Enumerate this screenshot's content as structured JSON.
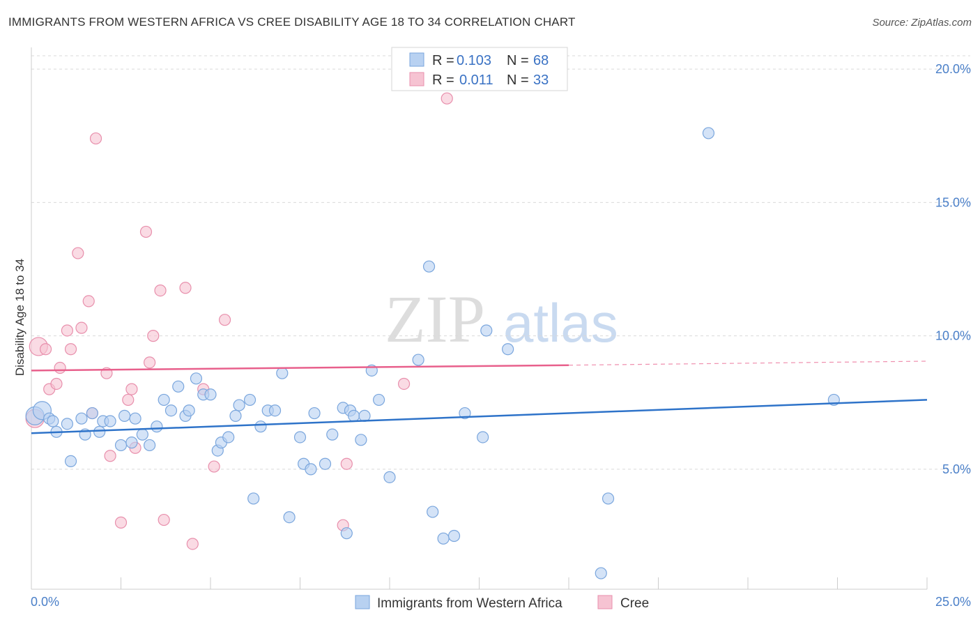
{
  "title": "IMMIGRANTS FROM WESTERN AFRICA VS CREE DISABILITY AGE 18 TO 34 CORRELATION CHART",
  "source": "Source: ZipAtlas.com",
  "watermark": {
    "zip": "ZIP",
    "atlas": "atlas"
  },
  "colors": {
    "blue_fill": "#b8d1f1",
    "blue_stroke": "#7aa6dd",
    "blue_line": "#2e73c9",
    "pink_fill": "#f6c3d2",
    "pink_stroke": "#e88fac",
    "pink_line": "#e8608c",
    "grid": "#d9d9d9",
    "tick_label": "#4a7fc8"
  },
  "legend": {
    "r_label": "R =",
    "n_label": "N =",
    "rows": [
      {
        "r": "0.103",
        "n": "68"
      },
      {
        "r": "0.011",
        "n": "33"
      }
    ]
  },
  "chart_data": {
    "type": "scatter",
    "title": "IMMIGRANTS FROM WESTERN AFRICA VS CREE DISABILITY AGE 18 TO 34 CORRELATION CHART",
    "xlabel": "",
    "ylabel": "Disability Age 18 to 34",
    "xlim": [
      0,
      25
    ],
    "ylim": [
      0.5,
      20.5
    ],
    "x_tick_labels": [
      "0.0%",
      "25.0%"
    ],
    "y_ticks": [
      5,
      10,
      15,
      20
    ],
    "y_tick_labels": [
      "5.0%",
      "10.0%",
      "15.0%",
      "20.0%"
    ],
    "grid": true,
    "legend_position": "top-center",
    "series": [
      {
        "name": "Immigrants from Western Africa",
        "r": 0.103,
        "n": 68,
        "trend": {
          "x": [
            0,
            25
          ],
          "y": [
            6.35,
            7.6
          ]
        },
        "points": [
          [
            0.1,
            7.0
          ],
          [
            0.3,
            7.2
          ],
          [
            0.5,
            6.9
          ],
          [
            0.6,
            6.8
          ],
          [
            0.7,
            6.4
          ],
          [
            1.0,
            6.7
          ],
          [
            1.1,
            5.3
          ],
          [
            1.4,
            6.9
          ],
          [
            1.5,
            6.3
          ],
          [
            1.7,
            7.1
          ],
          [
            1.9,
            6.4
          ],
          [
            2.0,
            6.8
          ],
          [
            2.2,
            6.8
          ],
          [
            2.5,
            5.9
          ],
          [
            2.6,
            7.0
          ],
          [
            2.8,
            6.0
          ],
          [
            2.9,
            6.9
          ],
          [
            3.1,
            6.3
          ],
          [
            3.3,
            5.9
          ],
          [
            3.5,
            6.6
          ],
          [
            3.7,
            7.6
          ],
          [
            3.9,
            7.2
          ],
          [
            4.1,
            8.1
          ],
          [
            4.3,
            7.0
          ],
          [
            4.4,
            7.2
          ],
          [
            4.6,
            8.4
          ],
          [
            4.8,
            7.8
          ],
          [
            5.0,
            7.8
          ],
          [
            5.2,
            5.7
          ],
          [
            5.3,
            6.0
          ],
          [
            5.5,
            6.2
          ],
          [
            5.7,
            7.0
          ],
          [
            5.8,
            7.4
          ],
          [
            6.1,
            7.6
          ],
          [
            6.2,
            3.9
          ],
          [
            6.4,
            6.6
          ],
          [
            6.6,
            7.2
          ],
          [
            6.8,
            7.2
          ],
          [
            7.0,
            8.6
          ],
          [
            7.2,
            3.2
          ],
          [
            7.5,
            6.2
          ],
          [
            7.6,
            5.2
          ],
          [
            7.8,
            5.0
          ],
          [
            7.9,
            7.1
          ],
          [
            8.2,
            5.2
          ],
          [
            8.4,
            6.3
          ],
          [
            8.7,
            7.3
          ],
          [
            8.9,
            7.2
          ],
          [
            8.8,
            2.6
          ],
          [
            9.0,
            7.0
          ],
          [
            9.2,
            6.1
          ],
          [
            9.3,
            7.0
          ],
          [
            9.5,
            8.7
          ],
          [
            9.7,
            7.6
          ],
          [
            10.0,
            4.7
          ],
          [
            10.8,
            9.1
          ],
          [
            11.1,
            12.6
          ],
          [
            11.2,
            3.4
          ],
          [
            11.5,
            2.4
          ],
          [
            11.8,
            2.5
          ],
          [
            12.1,
            7.1
          ],
          [
            12.6,
            6.2
          ],
          [
            12.7,
            10.2
          ],
          [
            13.3,
            9.5
          ],
          [
            15.9,
            1.1
          ],
          [
            16.1,
            3.9
          ],
          [
            18.9,
            17.6
          ],
          [
            22.4,
            7.6
          ]
        ]
      },
      {
        "name": "Cree",
        "r": 0.011,
        "n": 33,
        "trend": {
          "x": [
            0,
            15
          ],
          "y": [
            8.7,
            8.9
          ]
        },
        "trend_extension": {
          "x": [
            15,
            25
          ],
          "y": [
            8.9,
            9.05
          ]
        },
        "points": [
          [
            0.1,
            6.9
          ],
          [
            0.2,
            9.6
          ],
          [
            0.4,
            9.5
          ],
          [
            0.5,
            8.0
          ],
          [
            0.7,
            8.2
          ],
          [
            0.8,
            8.8
          ],
          [
            1.0,
            10.2
          ],
          [
            1.1,
            9.5
          ],
          [
            1.3,
            13.1
          ],
          [
            1.4,
            10.3
          ],
          [
            1.6,
            11.3
          ],
          [
            1.7,
            7.1
          ],
          [
            1.8,
            17.4
          ],
          [
            2.1,
            8.6
          ],
          [
            2.2,
            5.5
          ],
          [
            2.5,
            3.0
          ],
          [
            2.7,
            7.6
          ],
          [
            2.8,
            8.0
          ],
          [
            2.9,
            5.8
          ],
          [
            3.2,
            13.9
          ],
          [
            3.3,
            9.0
          ],
          [
            3.4,
            10.0
          ],
          [
            3.6,
            11.7
          ],
          [
            3.7,
            3.1
          ],
          [
            4.3,
            11.8
          ],
          [
            4.5,
            2.2
          ],
          [
            4.8,
            8.0
          ],
          [
            5.1,
            5.1
          ],
          [
            5.4,
            10.6
          ],
          [
            8.7,
            2.9
          ],
          [
            8.8,
            5.2
          ],
          [
            10.4,
            8.2
          ],
          [
            11.6,
            18.9
          ]
        ]
      }
    ]
  }
}
